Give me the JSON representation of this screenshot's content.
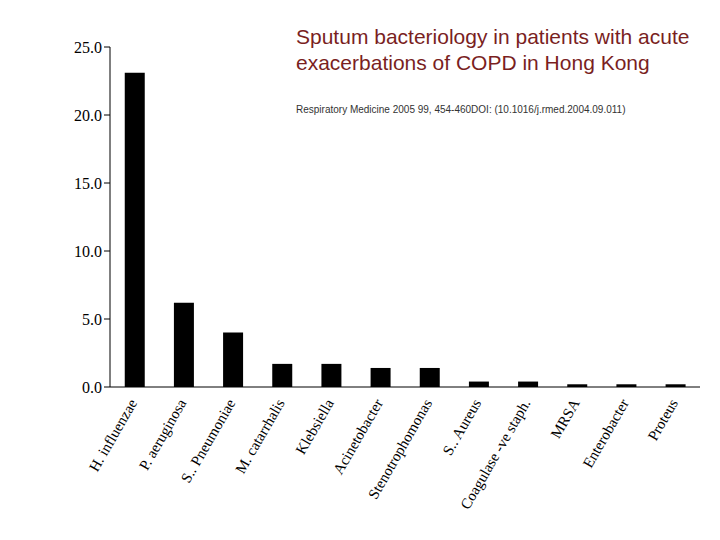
{
  "chart_data": {
    "type": "bar",
    "title": "Sputum bacteriology in patients with acute exacerbations of COPD in Hong Kong",
    "subtitle": "Respiratory Medicine 2005 99, 454-460DOI: (10.1016/j.rmed.2004.09.011)",
    "categories": [
      "H. influenzae",
      "P. aeruginosa",
      "S.. Pneumoniae",
      "M. catarrhalis",
      "Klebsiella",
      "Acinetobacter",
      "Stenotrophomonas",
      "S.. Aureus",
      "Coagulase -ve staph.",
      "MRSA",
      "Enterobacter",
      "Proteus"
    ],
    "values": [
      23.1,
      6.2,
      4.0,
      1.7,
      1.7,
      1.4,
      1.4,
      0.4,
      0.4,
      0.2,
      0.2,
      0.2
    ],
    "color": "#000000",
    "ylim": [
      0,
      25
    ],
    "yticks": [
      {
        "value": 0,
        "label": "0.0"
      },
      {
        "value": 5,
        "label": "5.0"
      },
      {
        "value": 10,
        "label": "10.0"
      },
      {
        "value": 15,
        "label": "15.0"
      },
      {
        "value": 20,
        "label": "20.0"
      },
      {
        "value": 25,
        "label": "25.0"
      }
    ],
    "grid": false
  }
}
